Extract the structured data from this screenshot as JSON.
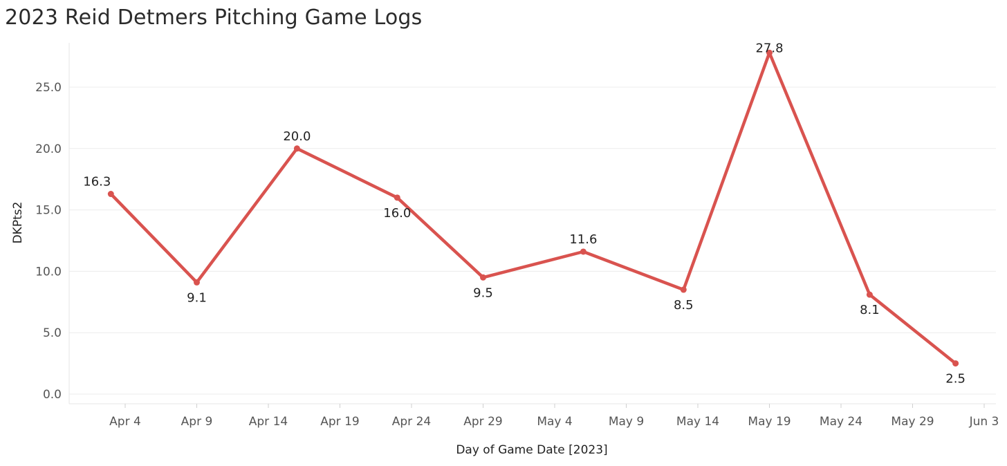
{
  "title": "2023 Reid Detmers Pitching Game Logs",
  "chart_data": {
    "type": "line",
    "title": "2023 Reid Detmers Pitching Game Logs",
    "xlabel": "Day of Game Date [2023]",
    "ylabel": "DKPts2",
    "x_ticks": [
      "Apr 4",
      "Apr 9",
      "Apr 14",
      "Apr 19",
      "Apr 24",
      "Apr 29",
      "May 4",
      "May 9",
      "May 14",
      "May 19",
      "May 24",
      "May 29",
      "Jun 3"
    ],
    "y_ticks": [
      "0.0",
      "5.0",
      "10.0",
      "15.0",
      "20.0",
      "25.0"
    ],
    "ylim": [
      0,
      28.5
    ],
    "grid": true,
    "series_color": "#d9534f",
    "points": [
      {
        "date": "2023-04-03",
        "value": 16.3,
        "label": "16.3"
      },
      {
        "date": "2023-04-09",
        "value": 9.1,
        "label": "9.1"
      },
      {
        "date": "2023-04-16",
        "value": 20.0,
        "label": "20.0"
      },
      {
        "date": "2023-04-23",
        "value": 16.0,
        "label": "16.0"
      },
      {
        "date": "2023-04-29",
        "value": 9.5,
        "label": "9.5"
      },
      {
        "date": "2023-05-06",
        "value": 11.6,
        "label": "11.6"
      },
      {
        "date": "2023-05-13",
        "value": 8.5,
        "label": "8.5"
      },
      {
        "date": "2023-05-19",
        "value": 27.8,
        "label": "27.8"
      },
      {
        "date": "2023-05-26",
        "value": 8.1,
        "label": "8.1"
      },
      {
        "date": "2023-06-01",
        "value": 2.5,
        "label": "2.5"
      }
    ]
  }
}
